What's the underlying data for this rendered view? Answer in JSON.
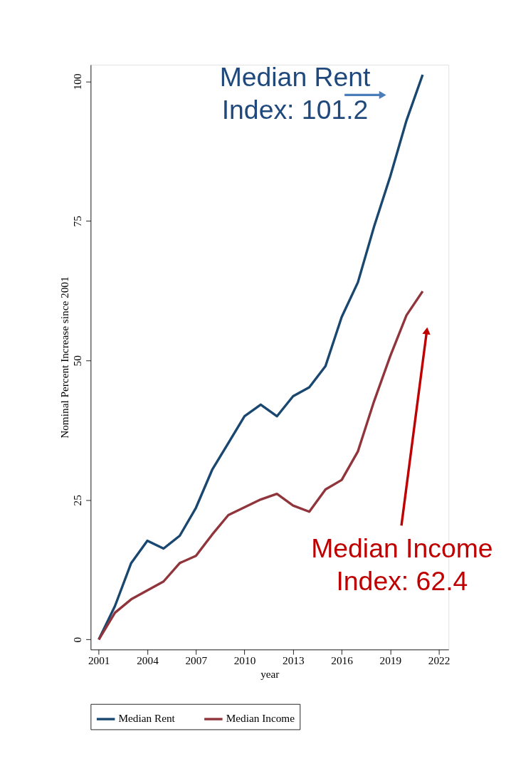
{
  "chart_data": {
    "type": "line",
    "xlabel": "year",
    "ylabel": "Nominal Percent Increase since 2001",
    "x": [
      2001,
      2002,
      2003,
      2004,
      2005,
      2006,
      2007,
      2008,
      2009,
      2010,
      2011,
      2012,
      2013,
      2014,
      2015,
      2016,
      2017,
      2018,
      2019,
      2020,
      2021
    ],
    "series": [
      {
        "name": "Median Rent",
        "color": "#1a476f",
        "values": [
          0,
          6,
          13.7,
          17.7,
          16.3,
          18.6,
          23.6,
          30.4,
          35.2,
          40,
          42.1,
          40,
          43.6,
          45.2,
          49,
          57.8,
          64,
          74,
          83,
          93,
          101.2
        ]
      },
      {
        "name": "Median Income",
        "color": "#90353b",
        "values": [
          0,
          4.8,
          7.2,
          8.8,
          10.4,
          13.7,
          15,
          18.8,
          22.3,
          23.7,
          25.1,
          26.1,
          24,
          22.9,
          26.9,
          28.6,
          33.7,
          42.7,
          50.8,
          58.1,
          62.4
        ]
      }
    ],
    "annotations": [
      "Median Rent\nIndex: 101.2",
      "Median Income\nIndex: 62.4"
    ],
    "xlim": [
      2000.5,
      2022.6
    ],
    "ylim": [
      -1.8,
      103
    ],
    "xticks": [
      2001,
      2004,
      2007,
      2010,
      2013,
      2016,
      2019,
      2022
    ],
    "yticks": [
      0,
      25,
      50,
      75,
      100
    ],
    "grid": false,
    "legend": "bottom",
    "marker": "none",
    "line_style": "solid"
  }
}
